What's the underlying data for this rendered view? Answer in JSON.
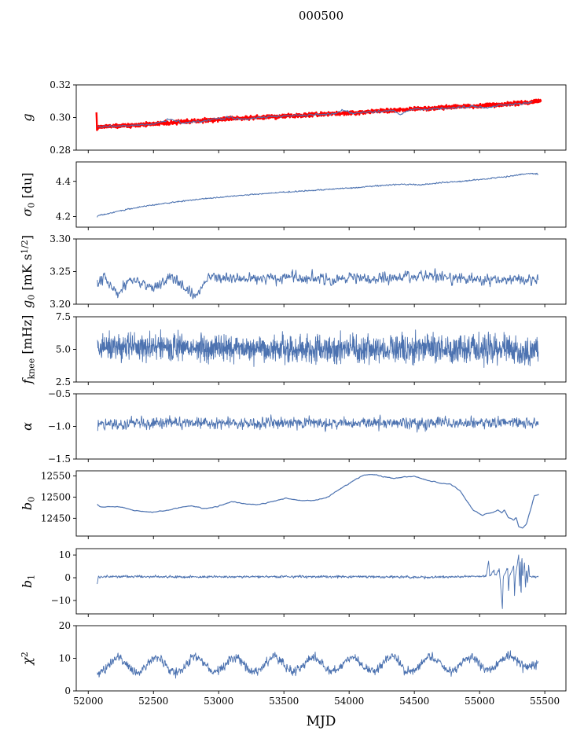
{
  "figure": {
    "title": "000500",
    "xlabel": "MJD",
    "xlim": [
      51908,
      55662
    ],
    "xticks": [
      52000,
      52500,
      53000,
      53500,
      54000,
      54500,
      55000,
      55500
    ],
    "xtick_labels": [
      "52000",
      "52500",
      "53000",
      "53500",
      "54000",
      "54500",
      "55000",
      "55500"
    ],
    "colors": {
      "line": "#4c72b0",
      "overlay": "#ff0000",
      "axis": "#000000",
      "background": "#ffffff"
    }
  },
  "chart_data": [
    {
      "name": "g",
      "type": "line",
      "ylabel": [
        {
          "t": "g",
          "italic": true
        }
      ],
      "ylim": [
        0.28,
        0.32
      ],
      "yticks": [
        0.28,
        0.3,
        0.32
      ],
      "ytick_labels": [
        "0.28",
        "0.30",
        "0.32"
      ],
      "series": [
        {
          "color": "#ff0000",
          "width": 2.4,
          "seed": 11,
          "points": 1600,
          "noise": 0.0012,
          "smooth": 1,
          "x_start": 52063,
          "x_end": 55470,
          "trend": [
            [
              52063,
              0.303
            ],
            [
              52067,
              0.2925
            ],
            [
              52075,
              0.2942
            ],
            [
              52250,
              0.295
            ],
            [
              52700,
              0.2972
            ],
            [
              53100,
              0.2993
            ],
            [
              53500,
              0.3008
            ],
            [
              54000,
              0.3028
            ],
            [
              54500,
              0.3052
            ],
            [
              55000,
              0.3072
            ],
            [
              55250,
              0.3084
            ],
            [
              55470,
              0.31
            ]
          ]
        },
        {
          "color": "#4c72b0",
          "width": 1.1,
          "seed": 5,
          "points": 900,
          "noise": 0.0007,
          "smooth": 4,
          "x_start": 52072,
          "x_end": 55405,
          "trend": [
            [
              52072,
              0.2942
            ],
            [
              52250,
              0.295
            ],
            [
              52400,
              0.2955
            ],
            [
              52520,
              0.2962
            ],
            [
              52620,
              0.299
            ],
            [
              52710,
              0.2968
            ],
            [
              52870,
              0.2978
            ],
            [
              53000,
              0.2994
            ],
            [
              53090,
              0.3002
            ],
            [
              53180,
              0.2992
            ],
            [
              53330,
              0.3
            ],
            [
              53500,
              0.3009
            ],
            [
              53700,
              0.3015
            ],
            [
              53880,
              0.3022
            ],
            [
              53950,
              0.3046
            ],
            [
              54030,
              0.3026
            ],
            [
              54200,
              0.3038
            ],
            [
              54320,
              0.3042
            ],
            [
              54390,
              0.3024
            ],
            [
              54470,
              0.3046
            ],
            [
              54620,
              0.305
            ],
            [
              54780,
              0.306
            ],
            [
              54950,
              0.3068
            ],
            [
              55040,
              0.3058
            ],
            [
              55150,
              0.3074
            ],
            [
              55260,
              0.3082
            ],
            [
              55405,
              0.3094
            ]
          ]
        }
      ]
    },
    {
      "name": "sigma0",
      "type": "line",
      "ylabel": [
        {
          "t": "σ",
          "italic": true
        },
        {
          "t": "0",
          "pos": "sub"
        },
        {
          "t": " [du]"
        }
      ],
      "ylim": [
        4.14,
        4.51
      ],
      "yticks": [
        4.2,
        4.4
      ],
      "ytick_labels": [
        "4.2",
        "4.4"
      ],
      "series": [
        {
          "color": "#4c72b0",
          "width": 1.0,
          "seed": 21,
          "points": 1300,
          "noise": 0.0035,
          "smooth": 2,
          "x_start": 52068,
          "x_end": 55450,
          "trend": [
            [
              52068,
              4.198
            ],
            [
              52078,
              4.207
            ],
            [
              52150,
              4.216
            ],
            [
              52300,
              4.242
            ],
            [
              52450,
              4.261
            ],
            [
              52650,
              4.281
            ],
            [
              52850,
              4.298
            ],
            [
              53050,
              4.312
            ],
            [
              53250,
              4.325
            ],
            [
              53450,
              4.336
            ],
            [
              53650,
              4.345
            ],
            [
              53850,
              4.355
            ],
            [
              54050,
              4.364
            ],
            [
              54250,
              4.377
            ],
            [
              54420,
              4.383
            ],
            [
              54550,
              4.38
            ],
            [
              54700,
              4.392
            ],
            [
              54850,
              4.4
            ],
            [
              55000,
              4.41
            ],
            [
              55150,
              4.422
            ],
            [
              55250,
              4.43
            ],
            [
              55330,
              4.441
            ],
            [
              55400,
              4.446
            ],
            [
              55450,
              4.44
            ]
          ]
        }
      ]
    },
    {
      "name": "g0",
      "type": "line",
      "ylabel": [
        {
          "t": "g",
          "italic": true
        },
        {
          "t": "0",
          "pos": "sub"
        },
        {
          "t": " [mK s"
        },
        {
          "t": "1/2",
          "pos": "sup"
        },
        {
          "t": "]"
        }
      ],
      "ylim": [
        3.2,
        3.3
      ],
      "yticks": [
        3.2,
        3.25,
        3.3
      ],
      "ytick_labels": [
        "3.20",
        "3.25",
        "3.30"
      ],
      "series": [
        {
          "color": "#4c72b0",
          "width": 1.0,
          "seed": 31,
          "points": 1300,
          "noise": 0.0085,
          "smooth": 3,
          "x_start": 52070,
          "x_end": 55450,
          "trend": [
            [
              52070,
              3.226
            ],
            [
              52120,
              3.24
            ],
            [
              52230,
              3.218
            ],
            [
              52320,
              3.24
            ],
            [
              52520,
              3.224
            ],
            [
              52630,
              3.242
            ],
            [
              52820,
              3.21
            ],
            [
              52920,
              3.243
            ],
            [
              53150,
              3.238
            ],
            [
              53600,
              3.24
            ],
            [
              54100,
              3.239
            ],
            [
              54650,
              3.245
            ],
            [
              55000,
              3.237
            ],
            [
              55450,
              3.239
            ]
          ]
        }
      ]
    },
    {
      "name": "fknee",
      "type": "line",
      "ylabel": [
        {
          "t": "f",
          "italic": true
        },
        {
          "t": "knee",
          "pos": "sub"
        },
        {
          "t": " [mHz]"
        }
      ],
      "ylim": [
        2.5,
        7.5
      ],
      "yticks": [
        2.5,
        5.0,
        7.5
      ],
      "ytick_labels": [
        "2.5",
        "5.0",
        "7.5"
      ],
      "series": [
        {
          "color": "#4c72b0",
          "width": 0.9,
          "seed": 41,
          "points": 1700,
          "noise": 1.05,
          "smooth": 1,
          "x_start": 52070,
          "x_end": 55450,
          "trend": [
            [
              52070,
              5.2
            ],
            [
              53000,
              5.1
            ],
            [
              54200,
              5.0
            ],
            [
              55450,
              5.0
            ]
          ]
        }
      ]
    },
    {
      "name": "alpha",
      "type": "line",
      "ylabel": [
        {
          "t": "α",
          "italic": true
        }
      ],
      "ylim": [
        -1.5,
        -0.5
      ],
      "yticks": [
        -1.5,
        -1.0,
        -0.5
      ],
      "ytick_labels": [
        "−1.5",
        "−1.0",
        "−0.5"
      ],
      "series": [
        {
          "color": "#4c72b0",
          "width": 0.9,
          "seed": 51,
          "points": 1500,
          "noise": 0.085,
          "smooth": 2,
          "x_start": 52070,
          "x_end": 55450,
          "trend": [
            [
              52070,
              -0.96
            ],
            [
              52600,
              -0.945
            ],
            [
              53200,
              -0.955
            ],
            [
              53800,
              -0.945
            ],
            [
              54400,
              -0.95
            ],
            [
              55000,
              -0.945
            ],
            [
              55450,
              -0.955
            ]
          ]
        }
      ]
    },
    {
      "name": "b0",
      "type": "line",
      "ylabel": [
        {
          "t": "b",
          "italic": true
        },
        {
          "t": "0",
          "pos": "sub"
        }
      ],
      "ylim": [
        12408,
        12562
      ],
      "yticks": [
        12450,
        12500,
        12550
      ],
      "ytick_labels": [
        "12450",
        "12500",
        "12550"
      ],
      "series": [
        {
          "color": "#4c72b0",
          "width": 1.2,
          "seed": 61,
          "points": 900,
          "noise": 1.0,
          "smooth": 5,
          "x_start": 52070,
          "x_end": 55455,
          "trend": [
            [
              52070,
              12482
            ],
            [
              52095,
              12476
            ],
            [
              52220,
              12478
            ],
            [
              52360,
              12468
            ],
            [
              52490,
              12464
            ],
            [
              52610,
              12469
            ],
            [
              52730,
              12477
            ],
            [
              52800,
              12479
            ],
            [
              52880,
              12473
            ],
            [
              52980,
              12477
            ],
            [
              53100,
              12489
            ],
            [
              53210,
              12484
            ],
            [
              53310,
              12482
            ],
            [
              53420,
              12490
            ],
            [
              53520,
              12497
            ],
            [
              53630,
              12492
            ],
            [
              53730,
              12492
            ],
            [
              53830,
              12499
            ],
            [
              53930,
              12519
            ],
            [
              54030,
              12538
            ],
            [
              54110,
              12552
            ],
            [
              54180,
              12554
            ],
            [
              54260,
              12548
            ],
            [
              54340,
              12544
            ],
            [
              54420,
              12548
            ],
            [
              54500,
              12549
            ],
            [
              54580,
              12541
            ],
            [
              54680,
              12534
            ],
            [
              54780,
              12530
            ],
            [
              54850,
              12515
            ],
            [
              54950,
              12470
            ],
            [
              55020,
              12457
            ],
            [
              55090,
              12463
            ],
            [
              55140,
              12470
            ],
            [
              55170,
              12462
            ],
            [
              55190,
              12469
            ],
            [
              55220,
              12452
            ],
            [
              55260,
              12446
            ],
            [
              55280,
              12452
            ],
            [
              55300,
              12430
            ],
            [
              55330,
              12427
            ],
            [
              55360,
              12438
            ],
            [
              55390,
              12470
            ],
            [
              55420,
              12503
            ],
            [
              55455,
              12506
            ]
          ]
        }
      ]
    },
    {
      "name": "b1",
      "type": "line",
      "ylabel": [
        {
          "t": "b",
          "italic": true
        },
        {
          "t": "1",
          "pos": "sub"
        }
      ],
      "ylim": [
        -15.9,
        12.8
      ],
      "yticks": [
        -10,
        0,
        10
      ],
      "ytick_labels": [
        "−10",
        "0",
        "10"
      ],
      "series": [
        {
          "color": "#4c72b0",
          "width": 0.9,
          "seed": 71,
          "points": 1600,
          "noise": 0.5,
          "smooth": 2,
          "x_start": 52068,
          "x_end": 55450,
          "trend": [
            [
              52068,
              -2.8
            ],
            [
              52078,
              0.4
            ],
            [
              52400,
              0.5
            ],
            [
              53000,
              0.4
            ],
            [
              53600,
              0.5
            ],
            [
              54200,
              0.4
            ],
            [
              54700,
              0.2
            ],
            [
              54900,
              0.6
            ],
            [
              55050,
              0.8
            ],
            [
              55070,
              7.2
            ],
            [
              55078,
              0.5
            ],
            [
              55110,
              3.5
            ],
            [
              55118,
              0.6
            ],
            [
              55150,
              3.8
            ],
            [
              55156,
              0.5
            ],
            [
              55175,
              -13.6
            ],
            [
              55182,
              0.5
            ],
            [
              55215,
              4.2
            ],
            [
              55222,
              -6.5
            ],
            [
              55228,
              0.5
            ],
            [
              55262,
              5.0
            ],
            [
              55268,
              -8.2
            ],
            [
              55274,
              0.5
            ],
            [
              55300,
              9.8
            ],
            [
              55306,
              -4.0
            ],
            [
              55312,
              8.4
            ],
            [
              55318,
              -9.2
            ],
            [
              55324,
              10.4
            ],
            [
              55330,
              0.5
            ],
            [
              55345,
              7.0
            ],
            [
              55352,
              -5.0
            ],
            [
              55360,
              4.0
            ],
            [
              55368,
              -3.0
            ],
            [
              55376,
              6.0
            ],
            [
              55384,
              0.5
            ],
            [
              55450,
              0.6
            ]
          ]
        }
      ]
    },
    {
      "name": "chi2",
      "type": "line",
      "ylabel": [
        {
          "t": "χ",
          "italic": true
        },
        {
          "t": "2",
          "pos": "sup"
        }
      ],
      "ylim": [
        0,
        20
      ],
      "yticks": [
        0,
        10,
        20
      ],
      "ytick_labels": [
        "0",
        "10",
        "20"
      ],
      "series": [
        {
          "color": "#4c72b0",
          "width": 0.9,
          "seed": 81,
          "points": 1600,
          "noise": 1.3,
          "smooth": 2,
          "x_start": 52070,
          "x_end": 55450,
          "osc": {
            "amp": 2.2,
            "period": 300,
            "phase": 52150
          },
          "trend": [
            [
              52070,
              7.8
            ],
            [
              53000,
              8.0
            ],
            [
              54000,
              8.0
            ],
            [
              55000,
              8.2
            ],
            [
              55350,
              9.0
            ],
            [
              55400,
              9.8
            ],
            [
              55450,
              8.5
            ]
          ]
        }
      ]
    }
  ]
}
